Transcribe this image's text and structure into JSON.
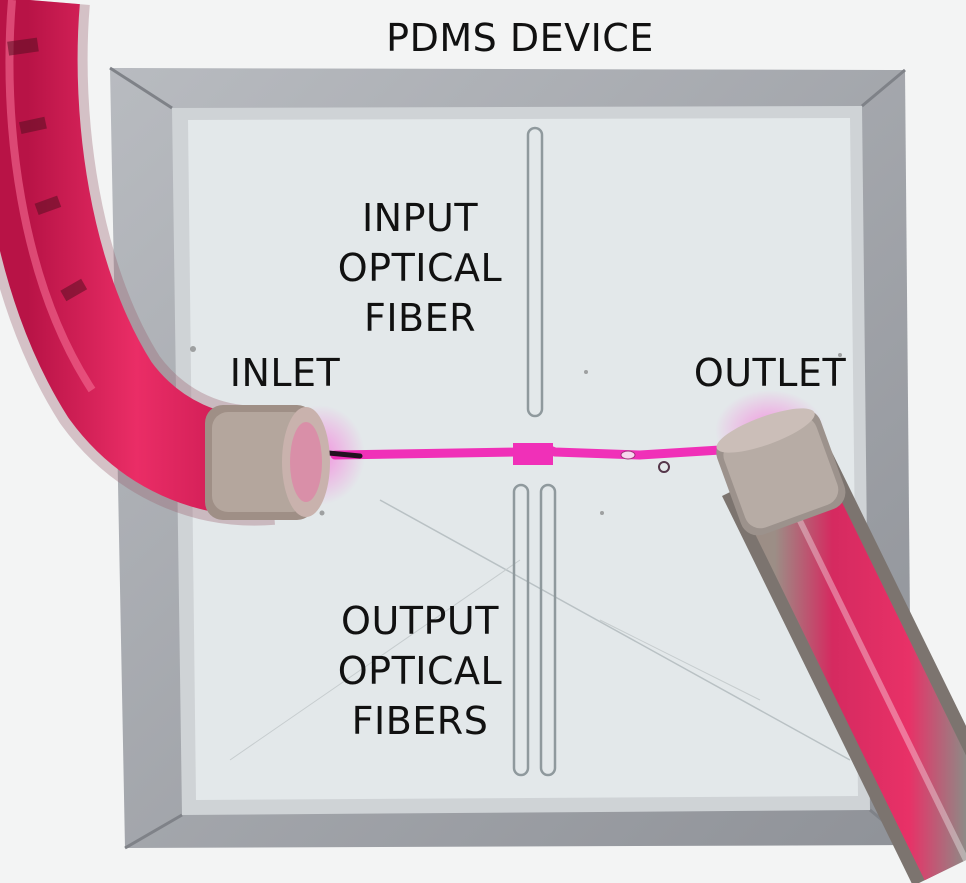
{
  "labels": {
    "title": "PDMS DEVICE",
    "input_fiber": [
      "INPUT",
      "OPTICAL",
      "FIBER"
    ],
    "inlet": "INLET",
    "outlet": "OUTLET",
    "output_fibers": [
      "OUTPUT",
      "OPTICAL",
      "FIBERS"
    ]
  },
  "colors": {
    "background": "#f3f4f4",
    "pdms_chip": "#e2e7e8",
    "chip_frame": "#9ea0a6",
    "tubing_fluid": "#e0245e",
    "channel_fluid": "#f030b8"
  }
}
